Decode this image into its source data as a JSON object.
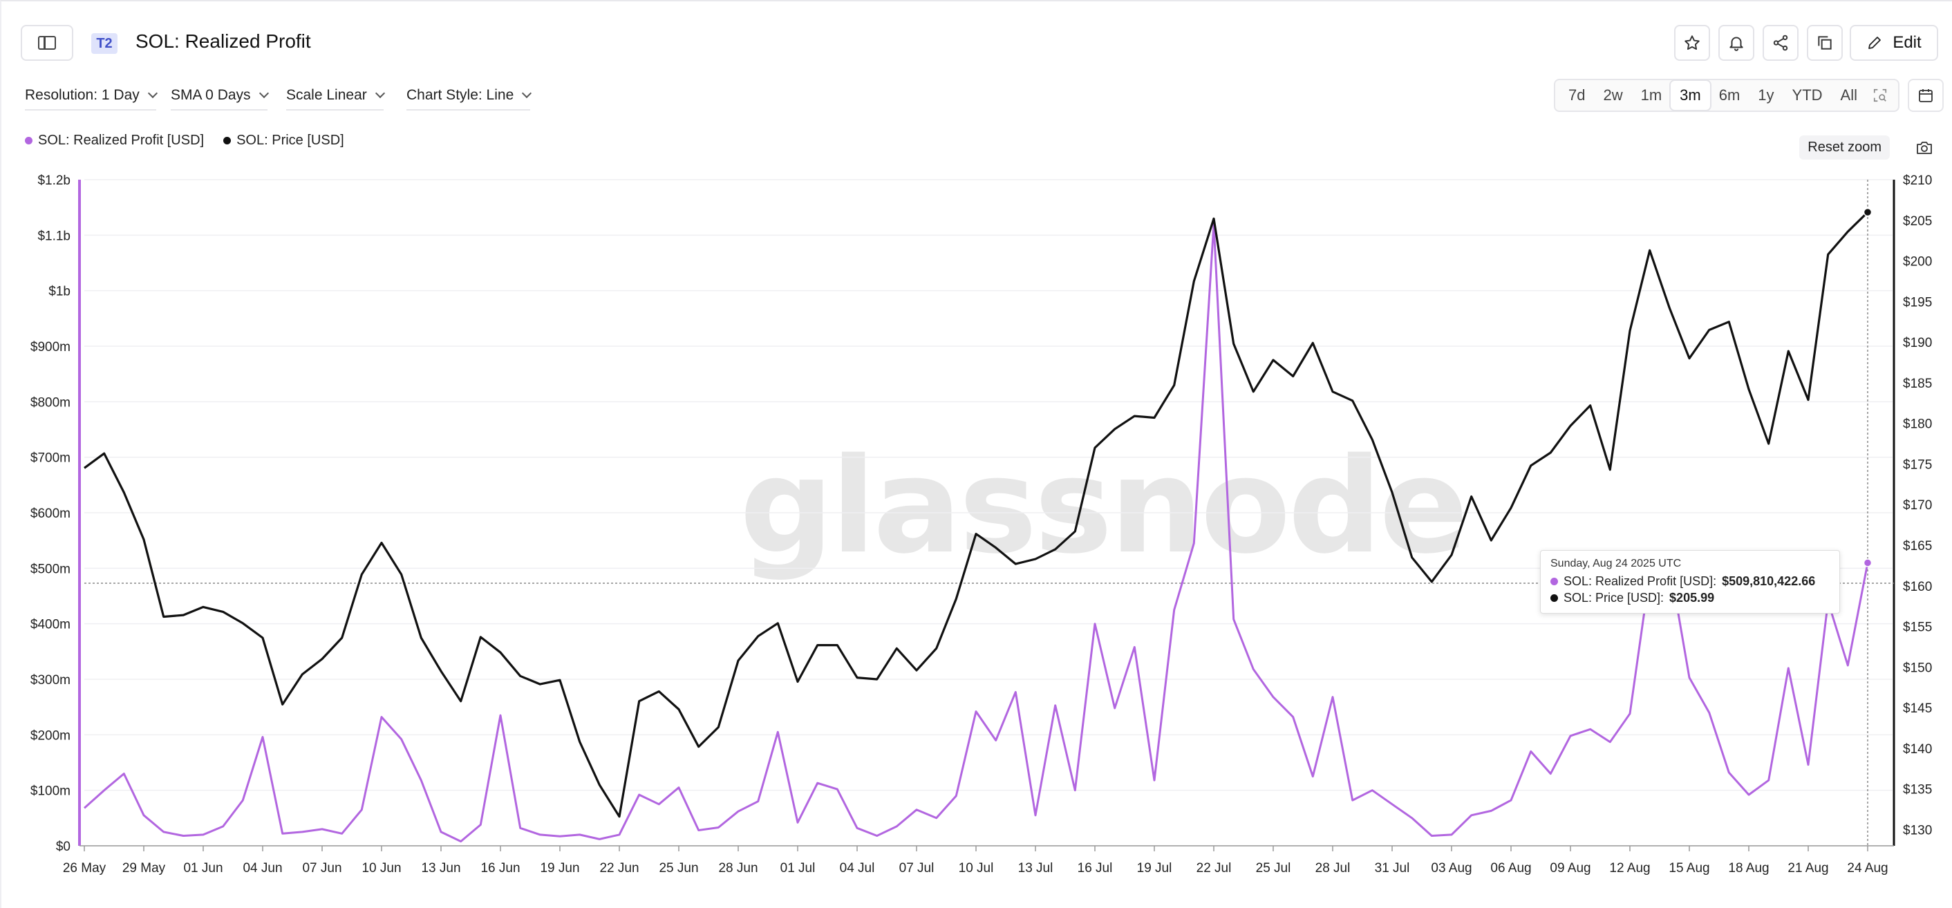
{
  "header": {
    "tier_badge": "T2",
    "title": "SOL: Realized Profit",
    "edit_label": "Edit",
    "icons": [
      "sidebar-toggle-icon",
      "star-icon",
      "bell-icon",
      "share-icon",
      "copy-icon",
      "pencil-icon"
    ]
  },
  "controls": {
    "resolution": "Resolution: 1 Day",
    "sma": "SMA 0 Days",
    "scale": "Scale Linear",
    "chart_style": "Chart Style: Line",
    "ranges": [
      "7d",
      "2w",
      "1m",
      "3m",
      "6m",
      "1y",
      "YTD",
      "All"
    ],
    "active_range": "3m"
  },
  "legend": [
    {
      "label": "SOL: Realized Profit [USD]",
      "color": "#b266e0"
    },
    {
      "label": "SOL: Price [USD]",
      "color": "#111111"
    }
  ],
  "reset_zoom_label": "Reset zoom",
  "watermark": "glassnode",
  "tooltip": {
    "date": "Sunday, Aug 24 2025 UTC",
    "row1_label": "SOL: Realized Profit [USD]: ",
    "row1_value": "$509,810,422.66",
    "row2_label": "SOL: Price [USD]: ",
    "row2_value": "$205.99"
  },
  "chart_data": {
    "type": "line",
    "x_start": "2025-05-26",
    "x_end": "2025-08-24",
    "x_tick_labels": [
      "26 May",
      "29 May",
      "01 Jun",
      "04 Jun",
      "07 Jun",
      "10 Jun",
      "13 Jun",
      "16 Jun",
      "19 Jun",
      "22 Jun",
      "25 Jun",
      "28 Jun",
      "01 Jul",
      "04 Jul",
      "07 Jul",
      "10 Jul",
      "13 Jul",
      "16 Jul",
      "19 Jul",
      "22 Jul",
      "25 Jul",
      "28 Jul",
      "31 Jul",
      "03 Aug",
      "06 Aug",
      "09 Aug",
      "12 Aug",
      "15 Aug",
      "18 Aug",
      "21 Aug",
      "24 Aug"
    ],
    "y_left_ticks": [
      "$0",
      "$100m",
      "$200m",
      "$300m",
      "$400m",
      "$500m",
      "$600m",
      "$700m",
      "$800m",
      "$900m",
      "$1b",
      "$1.1b",
      "$1.2b"
    ],
    "y_left_range": [
      0,
      1200000000
    ],
    "y_right_ticks": [
      "$130",
      "$135",
      "$140",
      "$145",
      "$150",
      "$155",
      "$160",
      "$165",
      "$170",
      "$175",
      "$180",
      "$185",
      "$190",
      "$195",
      "$200",
      "$205",
      "$210"
    ],
    "y_right_range": [
      128,
      210
    ],
    "grid": true,
    "legend_position": "top-left",
    "series": [
      {
        "name": "SOL: Realized Profit [USD]",
        "axis": "left",
        "color": "#b266e0",
        "values": [
          68000000,
          100000000,
          130000000,
          55000000,
          25000000,
          18000000,
          20000000,
          35000000,
          82000000,
          196000000,
          22000000,
          25000000,
          30000000,
          22000000,
          65000000,
          232000000,
          192000000,
          118000000,
          25000000,
          8000000,
          38000000,
          235000000,
          32000000,
          20000000,
          17000000,
          20000000,
          12000000,
          20000000,
          92000000,
          75000000,
          105000000,
          28000000,
          33000000,
          62000000,
          80000000,
          205000000,
          42000000,
          113000000,
          102000000,
          32000000,
          18000000,
          35000000,
          65000000,
          50000000,
          90000000,
          242000000,
          190000000,
          277000000,
          55000000,
          253000000,
          100000000,
          400000000,
          248000000,
          358000000,
          118000000,
          425000000,
          545000000,
          1120000000,
          408000000,
          318000000,
          268000000,
          232000000,
          125000000,
          268000000,
          82000000,
          100000000,
          75000000,
          50000000,
          18000000,
          20000000,
          55000000,
          63000000,
          82000000,
          170000000,
          130000000,
          198000000,
          210000000,
          187000000,
          238000000,
          490000000,
          510000000,
          303000000,
          240000000,
          132000000,
          92000000,
          118000000,
          320000000,
          146000000,
          440000000,
          325000000,
          509810422.66
        ]
      },
      {
        "name": "SOL: Price [USD]",
        "axis": "right",
        "color": "#111111",
        "values": [
          174.5,
          176.3,
          171.5,
          165.7,
          156.2,
          156.4,
          157.4,
          156.8,
          155.4,
          153.6,
          145.4,
          149.1,
          151.0,
          153.6,
          161.4,
          165.3,
          161.4,
          153.6,
          149.5,
          145.8,
          153.7,
          151.8,
          148.9,
          147.9,
          148.4,
          140.8,
          135.5,
          131.6,
          145.8,
          147.0,
          144.8,
          140.2,
          142.6,
          150.8,
          153.8,
          155.4,
          148.2,
          152.7,
          152.7,
          148.7,
          148.5,
          152.3,
          149.6,
          152.3,
          158.4,
          166.4,
          164.7,
          162.7,
          163.3,
          164.5,
          166.7,
          177.0,
          179.3,
          180.9,
          180.7,
          184.7,
          197.5,
          205.2,
          189.8,
          183.9,
          187.8,
          185.8,
          189.9,
          183.9,
          182.8,
          178.0,
          171.5,
          163.5,
          160.5,
          163.8,
          171.0,
          165.6,
          169.6,
          174.8,
          176.4,
          179.7,
          182.2,
          174.3,
          191.4,
          201.3,
          194.2,
          188.0,
          191.5,
          192.5,
          184.2,
          177.5,
          188.9,
          182.9,
          200.8,
          203.6,
          205.99
        ]
      }
    ]
  }
}
